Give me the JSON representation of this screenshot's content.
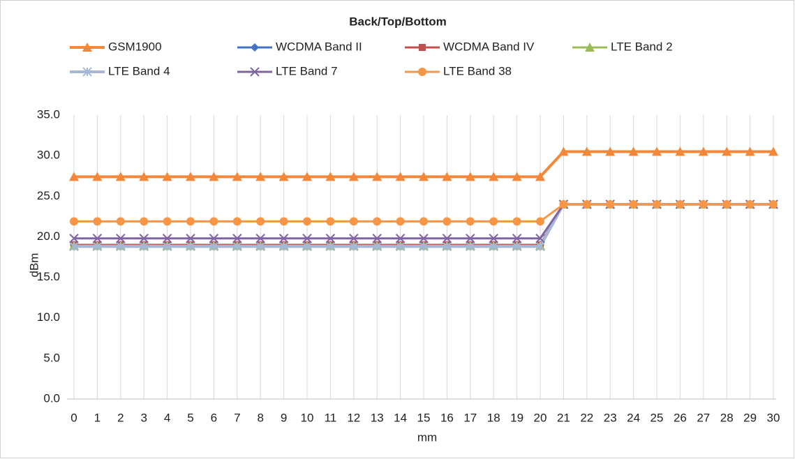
{
  "chart_data": {
    "type": "line",
    "title": "Back/Top/Bottom",
    "xlabel": "mm",
    "ylabel": "dBm",
    "x": [
      0,
      1,
      2,
      3,
      4,
      5,
      6,
      7,
      8,
      9,
      10,
      11,
      12,
      13,
      14,
      15,
      16,
      17,
      18,
      19,
      20,
      21,
      22,
      23,
      24,
      25,
      26,
      27,
      28,
      29,
      30
    ],
    "xlim": [
      0,
      30
    ],
    "ylim": [
      0,
      35
    ],
    "yticks": [
      {
        "value": 0,
        "label": "0.0"
      },
      {
        "value": 5,
        "label": "5.0"
      },
      {
        "value": 10,
        "label": "10.0"
      },
      {
        "value": 15,
        "label": "15.0"
      },
      {
        "value": 20,
        "label": "20.0"
      },
      {
        "value": 25,
        "label": "25.0"
      },
      {
        "value": 30,
        "label": "30.0"
      },
      {
        "value": 35,
        "label": "35.0"
      }
    ],
    "grid": "x",
    "legend": "top",
    "series": [
      {
        "name": "GSM1900",
        "color": "#f4883a",
        "marker": "triangle",
        "width": 4,
        "values": [
          27.4,
          27.4,
          27.4,
          27.4,
          27.4,
          27.4,
          27.4,
          27.4,
          27.4,
          27.4,
          27.4,
          27.4,
          27.4,
          27.4,
          27.4,
          27.4,
          27.4,
          27.4,
          27.4,
          27.4,
          27.4,
          30.5,
          30.5,
          30.5,
          30.5,
          30.5,
          30.5,
          30.5,
          30.5,
          30.5,
          30.5
        ]
      },
      {
        "name": "WCDMA Band II",
        "color": "#4472c4",
        "marker": "diamond",
        "width": 3,
        "values": [
          19.0,
          19.0,
          19.0,
          19.0,
          19.0,
          19.0,
          19.0,
          19.0,
          19.0,
          19.0,
          19.0,
          19.0,
          19.0,
          19.0,
          19.0,
          19.0,
          19.0,
          19.0,
          19.0,
          19.0,
          19.0,
          24.0,
          24.0,
          24.0,
          24.0,
          24.0,
          24.0,
          24.0,
          24.0,
          24.0,
          24.0
        ]
      },
      {
        "name": "WCDMA Band IV",
        "color": "#c0504d",
        "marker": "square",
        "width": 3,
        "values": [
          19.0,
          19.0,
          19.0,
          19.0,
          19.0,
          19.0,
          19.0,
          19.0,
          19.0,
          19.0,
          19.0,
          19.0,
          19.0,
          19.0,
          19.0,
          19.0,
          19.0,
          19.0,
          19.0,
          19.0,
          19.0,
          24.0,
          24.0,
          24.0,
          24.0,
          24.0,
          24.0,
          24.0,
          24.0,
          24.0,
          24.0
        ]
      },
      {
        "name": "LTE Band 2",
        "color": "#9bbb59",
        "marker": "triangle",
        "width": 3,
        "values": [
          18.9,
          18.9,
          18.9,
          18.9,
          18.9,
          18.9,
          18.9,
          18.9,
          18.9,
          18.9,
          18.9,
          18.9,
          18.9,
          18.9,
          18.9,
          18.9,
          18.9,
          18.9,
          18.9,
          18.9,
          18.9,
          24.0,
          24.0,
          24.0,
          24.0,
          24.0,
          24.0,
          24.0,
          24.0,
          24.0,
          24.0
        ]
      },
      {
        "name": "LTE Band 4",
        "color": "#a5b8d8",
        "marker": "star",
        "width": 4,
        "values": [
          18.8,
          18.8,
          18.8,
          18.8,
          18.8,
          18.8,
          18.8,
          18.8,
          18.8,
          18.8,
          18.8,
          18.8,
          18.8,
          18.8,
          18.8,
          18.8,
          18.8,
          18.8,
          18.8,
          18.8,
          18.8,
          24.0,
          24.0,
          24.0,
          24.0,
          24.0,
          24.0,
          24.0,
          24.0,
          24.0,
          24.0
        ]
      },
      {
        "name": "LTE Band 7",
        "color": "#8064a2",
        "marker": "x",
        "width": 3,
        "values": [
          19.8,
          19.8,
          19.8,
          19.8,
          19.8,
          19.8,
          19.8,
          19.8,
          19.8,
          19.8,
          19.8,
          19.8,
          19.8,
          19.8,
          19.8,
          19.8,
          19.8,
          19.8,
          19.8,
          19.8,
          19.8,
          24.0,
          24.0,
          24.0,
          24.0,
          24.0,
          24.0,
          24.0,
          24.0,
          24.0,
          24.0
        ]
      },
      {
        "name": "LTE Band 38",
        "color": "#f79646",
        "marker": "circle",
        "width": 3,
        "values": [
          21.9,
          21.9,
          21.9,
          21.9,
          21.9,
          21.9,
          21.9,
          21.9,
          21.9,
          21.9,
          21.9,
          21.9,
          21.9,
          21.9,
          21.9,
          21.9,
          21.9,
          21.9,
          21.9,
          21.9,
          21.9,
          24.0,
          24.0,
          24.0,
          24.0,
          24.0,
          24.0,
          24.0,
          24.0,
          24.0,
          24.0
        ]
      }
    ]
  }
}
